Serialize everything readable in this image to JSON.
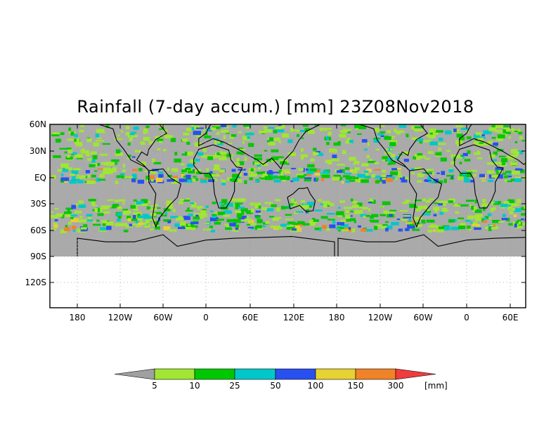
{
  "title": "Rainfall (7-day accum.) [mm] 23Z08Nov2018",
  "y_ticks": [
    "60N",
    "30N",
    "EQ",
    "30S",
    "60S",
    "90S",
    "120S"
  ],
  "x_ticks": [
    "180",
    "120W",
    "60W",
    "0",
    "60E",
    "120E",
    "180",
    "120W",
    "60W",
    "0",
    "60E"
  ],
  "colorbar": {
    "unit": "[mm]",
    "levels": [
      "5",
      "10",
      "25",
      "50",
      "100",
      "150",
      "300"
    ],
    "colors": [
      "#a0a0a0",
      "#a0e632",
      "#00c800",
      "#00c8c8",
      "#2850f0",
      "#e6d232",
      "#f08228",
      "#f03c3c"
    ]
  },
  "colors": {
    "land_no_rain": "#aaaaaa",
    "coastline": "#000000",
    "grid": "#999999"
  }
}
